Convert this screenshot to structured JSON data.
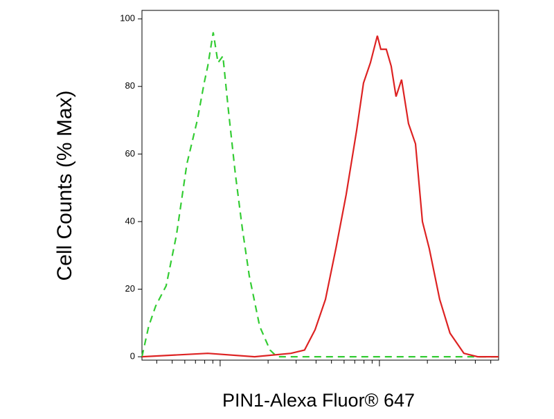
{
  "chart_data": {
    "type": "line",
    "log_x": true,
    "y_label": "Cell Counts (% Max)",
    "x_label": "PIN1-Alexa Fluor® 647",
    "xlim": [
      323,
      56000
    ],
    "ylim": [
      -1,
      102.5
    ],
    "yticks": [
      0,
      20,
      40,
      60,
      80,
      100
    ],
    "xticks": [
      400,
      500,
      600,
      700,
      800,
      900,
      1000,
      2000,
      3000,
      4000,
      5000,
      6000,
      7000,
      8000,
      9000,
      10000,
      20000,
      30000,
      40000,
      50000
    ],
    "series": [
      {
        "color": "#33cc33",
        "dashed": true,
        "x": [
          323,
          356,
          394,
          458,
          532,
          618,
          719,
          794,
          836,
          905,
          970,
          1041,
          1127,
          1246,
          1378,
          1523,
          1771,
          2056,
          2275,
          56000
        ],
        "values": [
          0,
          9,
          15,
          21,
          36,
          57,
          70,
          81,
          86,
          96,
          87,
          89,
          73,
          54,
          38,
          24,
          9,
          2,
          0,
          0
        ]
      },
      {
        "color": "#dd2222",
        "dashed": false,
        "x": [
          323,
          836,
          1646,
          2782,
          3388,
          3945,
          4585,
          5325,
          6185,
          7190,
          7945,
          8775,
          9705,
          10205,
          11045,
          11855,
          12710,
          13770,
          15230,
          16840,
          18620,
          20560,
          23880,
          27740,
          33900,
          41400,
          56000
        ],
        "values": [
          0,
          1,
          0,
          1,
          2,
          8,
          17,
          32,
          48,
          67,
          81,
          87,
          95,
          91,
          91,
          86,
          77,
          82,
          69,
          63,
          40,
          32,
          17,
          7,
          1,
          0,
          0
        ]
      }
    ]
  }
}
